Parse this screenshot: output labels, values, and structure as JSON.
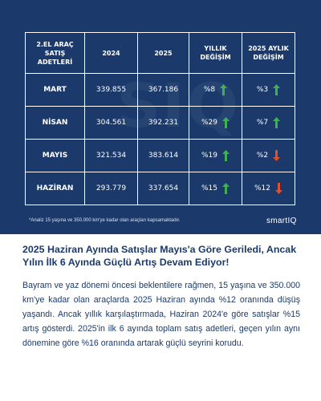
{
  "colors": {
    "background": "#1b3a6b",
    "up": "#3fb24f",
    "down": "#e0502a",
    "text_dark": "#1b3a6b"
  },
  "chart_data": {
    "type": "table",
    "columns": [
      "2.EL ARAÇ\nSATIŞ\nADETLERİ",
      "2024",
      "2025",
      "YILLIK\nDEĞİŞİM",
      "2025 AYLIK\nDEĞİŞİM"
    ],
    "rows": [
      {
        "month": "MART",
        "y2024": "339.855",
        "y2025": "367.186",
        "yearly": "%8",
        "yearly_dir": "up",
        "monthly": "%3",
        "monthly_dir": "up"
      },
      {
        "month": "NİSAN",
        "y2024": "304.561",
        "y2025": "392.231",
        "yearly": "%29",
        "yearly_dir": "up",
        "monthly": "%7",
        "monthly_dir": "up"
      },
      {
        "month": "MAYIS",
        "y2024": "321.534",
        "y2025": "383.614",
        "yearly": "%19",
        "yearly_dir": "up",
        "monthly": "%2",
        "monthly_dir": "down"
      },
      {
        "month": "HAZİRAN",
        "y2024": "293.779",
        "y2025": "337.654",
        "yearly": "%15",
        "yearly_dir": "up",
        "monthly": "%12",
        "monthly_dir": "down"
      }
    ]
  },
  "footnote": "*Analiz 15 yaşına ve 350.000 km'ye kadar olan araçları kapsamaktadır.",
  "brand": "smartIQ",
  "watermark": "SIQ",
  "headline": "2025 Haziran Ayında Satışlar Mayıs'a Göre Geriledi, Ancak Yılın İlk 6 Ayında Güçlü Artış Devam Ediyor!",
  "body": "Bayram ve yaz dönemi öncesi beklentilere rağmen, 15 yaşına ve 350.000 km'ye kadar olan araçlarda 2025 Haziran ayında %12 oranında düşüş yaşandı. Ancak yıllık karşılaştırmada, Haziran 2024'e göre satışlar %15 artış gösterdi. 2025'in ilk 6 ayında toplam satış adetleri, geçen yılın aynı dönemine göre %16 oranında artarak güçlü seyrini korudu."
}
